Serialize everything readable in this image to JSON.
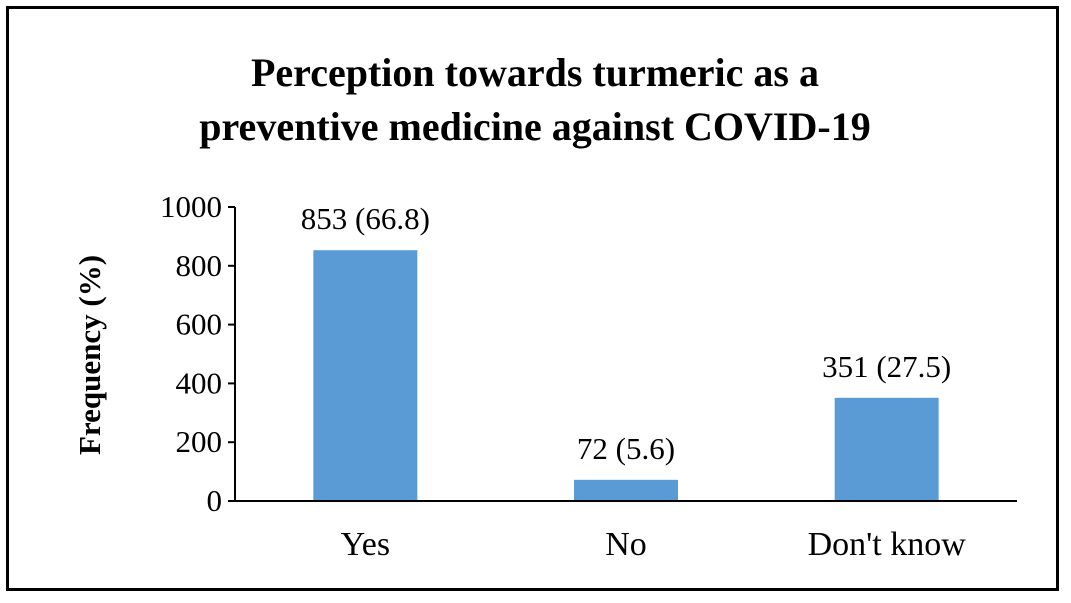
{
  "chart_data": {
    "type": "bar",
    "title_lines": [
      "Perception towards turmeric as a",
      "preventive medicine against COVID-19"
    ],
    "xlabel": "",
    "ylabel": "Frequency (%)",
    "categories": [
      "Yes",
      "No",
      "Don't know"
    ],
    "values": [
      853,
      72,
      351
    ],
    "data_labels": [
      "853 (66.8)",
      "72 (5.6)",
      "351 (27.5)"
    ],
    "ylim": [
      0,
      1000
    ],
    "yticks": [
      0,
      200,
      400,
      600,
      800,
      1000
    ],
    "ytick_labels": [
      "0",
      "200",
      "400",
      "600",
      "800",
      "1000"
    ],
    "grid": false,
    "legend": "none",
    "colors": {
      "bar": "#5b9bd5",
      "axis": "#000000",
      "text": "#000000",
      "frame": "#000000"
    }
  }
}
